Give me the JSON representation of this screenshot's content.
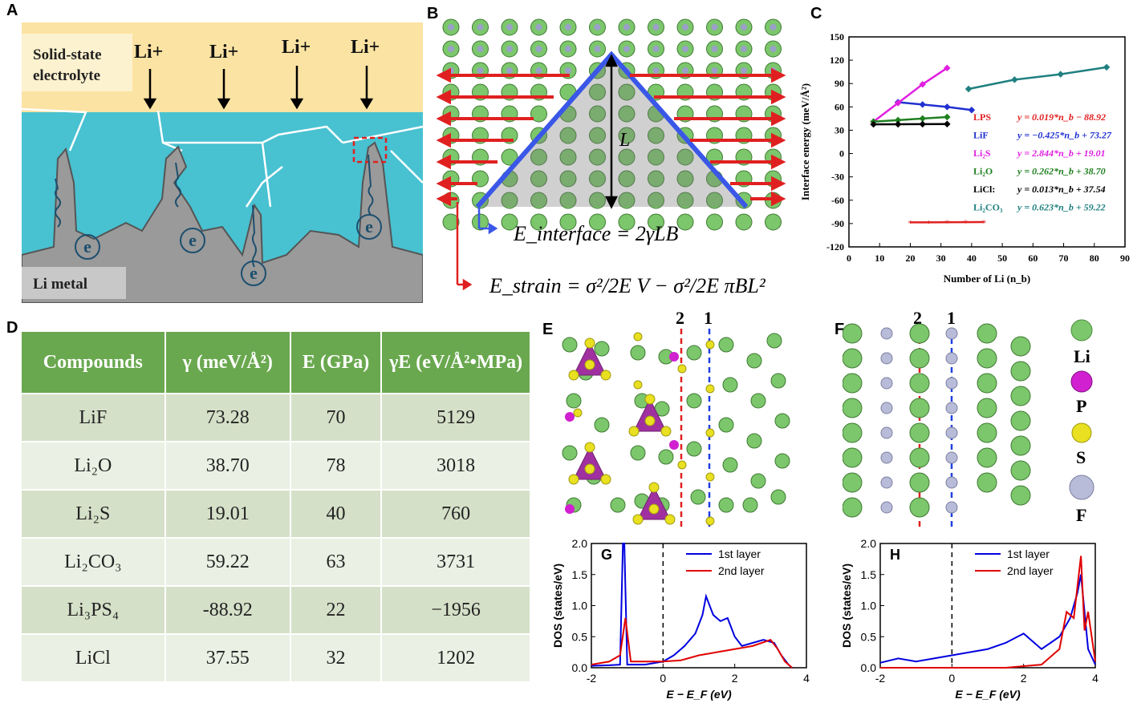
{
  "panels": {
    "A": "A",
    "B": "B",
    "C": "C",
    "D": "D",
    "E": "E",
    "F": "F",
    "G": "G",
    "H": "H"
  },
  "panelA": {
    "electrolyte_label_line1": "Solid-state",
    "electrolyte_label_line2": "electrolyte",
    "li_ions": [
      "Li+",
      "Li+",
      "Li+",
      "Li+"
    ],
    "metal_label": "Li metal",
    "electron_label": "e",
    "colors": {
      "electrolyte": "#fbe3a3",
      "liquid": "#48c1d1",
      "metal": "#9a9a9a",
      "arrow": "#1d4f6e"
    }
  },
  "panelB": {
    "L_label": "L",
    "eq1": "E_interface = 2γLB",
    "eq2": "E_strain = σ²/2E V − σ²/2E πBL²",
    "colors": {
      "atom": "#7cc66b",
      "arrow": "#e02020",
      "triangle": "#3a57e8",
      "line": "#000000"
    }
  },
  "chart_data": [
    {
      "panel": "C",
      "type": "scatter",
      "xlabel": "Number of Li (n_b)",
      "ylabel": "Interface energy (meV/Å²)",
      "xlim": [
        0,
        90
      ],
      "ylim": [
        -120,
        150
      ],
      "xticks": [
        0,
        10,
        20,
        30,
        40,
        50,
        60,
        70,
        80,
        90
      ],
      "yticks": [
        -120,
        -90,
        -60,
        -30,
        0,
        30,
        60,
        90,
        120,
        150
      ],
      "series": [
        {
          "name": "LPS",
          "fit": "y = 0.019*n_b − 88.92",
          "color": "#e02020",
          "x": [
            20,
            26,
            32,
            38,
            44
          ],
          "y": [
            -88.5,
            -88.4,
            -88.3,
            -88.2,
            -88.1
          ]
        },
        {
          "name": "LiF",
          "fit": "y = −0.425*n_b + 73.27",
          "color": "#2030d0",
          "x": [
            16,
            24,
            32,
            40
          ],
          "y": [
            66,
            63,
            60,
            56
          ]
        },
        {
          "name": "Li₂S",
          "fit": "y = 2.844*n_b + 19.01",
          "color": "#e020e0",
          "x": [
            8,
            16,
            24,
            32
          ],
          "y": [
            41,
            65,
            89,
            110
          ]
        },
        {
          "name": "Li₂O",
          "fit": "y = 0.262*n_b + 38.70",
          "color": "#208020",
          "x": [
            8,
            16,
            24,
            32
          ],
          "y": [
            41,
            43,
            45,
            47
          ]
        },
        {
          "name": "LiCl:",
          "fit": "y = 0.013*n_b + 37.54",
          "color": "#000000",
          "x": [
            8,
            16,
            24,
            32
          ],
          "y": [
            37.6,
            37.7,
            37.8,
            37.9
          ]
        },
        {
          "name": "Li₂CO₃",
          "fit": "y = 0.623*n_b + 59.22",
          "color": "#208080",
          "x": [
            39,
            54,
            69,
            84
          ],
          "y": [
            83,
            95,
            102,
            111
          ]
        }
      ]
    },
    {
      "panel": "G",
      "type": "line",
      "xlabel": "E − E_F (eV)",
      "ylabel": "DOS (states/eV)",
      "xlim": [
        -2,
        4
      ],
      "ylim": [
        0,
        2.0
      ],
      "xticks": [
        -2,
        0,
        2,
        4
      ],
      "yticks": [
        0.0,
        0.5,
        1.0,
        1.5,
        2.0
      ],
      "series": [
        {
          "name": "1st layer",
          "color": "#0000e0",
          "x": [
            -2,
            -1.5,
            -1.2,
            -1.12,
            -1.08,
            -1.0,
            -0.5,
            0,
            0.3,
            0.6,
            0.9,
            1.1,
            1.2,
            1.4,
            1.6,
            1.8,
            2.0,
            2.2,
            2.5,
            2.8,
            3.1,
            3.3,
            3.5,
            3.6
          ],
          "y": [
            0.03,
            0.04,
            0.05,
            2.0,
            2.0,
            0.05,
            0.05,
            0.1,
            0.2,
            0.35,
            0.55,
            0.85,
            1.15,
            0.85,
            0.75,
            0.8,
            0.5,
            0.35,
            0.4,
            0.45,
            0.4,
            0.2,
            0.05,
            0.0
          ]
        },
        {
          "name": "2nd layer",
          "color": "#e00000",
          "x": [
            -2,
            -1.5,
            -1.2,
            -1.05,
            -0.9,
            -0.5,
            0,
            0.5,
            1.0,
            1.5,
            2.0,
            2.5,
            3.0,
            3.2,
            3.4,
            3.6
          ],
          "y": [
            0.05,
            0.1,
            0.2,
            0.8,
            0.1,
            0.1,
            0.1,
            0.12,
            0.2,
            0.25,
            0.3,
            0.35,
            0.45,
            0.3,
            0.1,
            0.0
          ]
        }
      ]
    },
    {
      "panel": "H",
      "type": "line",
      "xlabel": "E − E_F (eV)",
      "ylabel": "DOS (states/eV)",
      "xlim": [
        -2,
        4
      ],
      "ylim": [
        0,
        2.0
      ],
      "xticks": [
        -2,
        0,
        2,
        4
      ],
      "yticks": [
        0.0,
        0.5,
        1.0,
        1.5,
        2.0
      ],
      "series": [
        {
          "name": "1st layer",
          "color": "#0000e0",
          "x": [
            -2,
            -1.5,
            -1.0,
            -0.5,
            0,
            0.5,
            1.0,
            1.5,
            2.0,
            2.5,
            3.0,
            3.3,
            3.5,
            3.6,
            3.7,
            3.8,
            4.0
          ],
          "y": [
            0.08,
            0.15,
            0.1,
            0.15,
            0.2,
            0.25,
            0.3,
            0.4,
            0.55,
            0.3,
            0.5,
            0.8,
            1.2,
            1.5,
            0.9,
            0.3,
            0.05
          ]
        },
        {
          "name": "2nd layer",
          "color": "#e00000",
          "x": [
            -2,
            0,
            1.5,
            2.5,
            3.0,
            3.2,
            3.4,
            3.6,
            3.7,
            3.8,
            4.0
          ],
          "y": [
            0.0,
            0.0,
            0.0,
            0.05,
            0.3,
            0.9,
            0.8,
            1.8,
            0.6,
            0.9,
            0.1
          ]
        }
      ]
    }
  ],
  "tableD": {
    "headers": [
      "Compounds",
      "γ (meV/Å²)",
      "E (GPa)",
      "γE (eV/Å²•MPa)"
    ],
    "rows": [
      [
        "LiF",
        "73.28",
        "70",
        "5129"
      ],
      [
        "Li₂O",
        "38.70",
        "78",
        "3018"
      ],
      [
        "Li₂S",
        "19.01",
        "40",
        "760"
      ],
      [
        "Li₂CO₃",
        "59.22",
        "63",
        "3731"
      ],
      [
        "Li₃PS₄",
        "-88.92",
        "22",
        "−1956"
      ],
      [
        "LiCl",
        "37.55",
        "32",
        "1202"
      ]
    ]
  },
  "panelE": {
    "plane_labels": [
      "2",
      "1"
    ]
  },
  "panelF": {
    "plane_labels": [
      "2",
      "1"
    ],
    "legend": [
      "Li",
      "P",
      "S",
      "F"
    ],
    "legend_colors": {
      "Li": "#7cc66b",
      "P": "#d020d0",
      "S": "#e8e020",
      "F": "#b8bcd8"
    }
  }
}
